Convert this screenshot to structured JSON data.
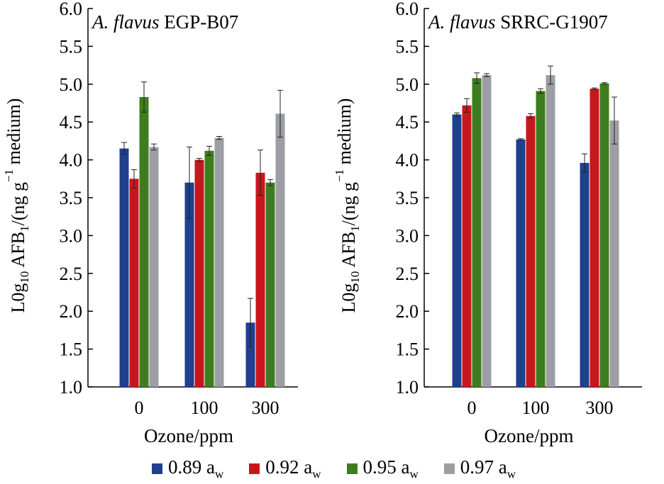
{
  "chart_data": [
    {
      "type": "bar",
      "title_italic": "A. flavus",
      "title_rest": "EGP-B07",
      "xlabel": "Ozone/ppm",
      "ylabel_parts": [
        "L0g",
        "10",
        " AFB",
        "1",
        "/(ng g",
        "−1",
        " medium)"
      ],
      "ylim": [
        1.0,
        6.0
      ],
      "yticks": [
        "1.0",
        "1.5",
        "2.0",
        "2.5",
        "3.0",
        "3.5",
        "4.0",
        "4.5",
        "5.0",
        "5.5",
        "6.0"
      ],
      "categories": [
        "0",
        "100",
        "300"
      ],
      "series": [
        {
          "name": "0.89 aw",
          "color": "#1f3f8f",
          "values": [
            4.15,
            3.7,
            1.85
          ],
          "errors": [
            0.08,
            0.47,
            0.32
          ]
        },
        {
          "name": "0.92 aw",
          "color": "#c8161d",
          "values": [
            3.75,
            4.0,
            3.83
          ],
          "errors": [
            0.12,
            0.02,
            0.3
          ]
        },
        {
          "name": "0.95 aw",
          "color": "#3e7d1f",
          "values": [
            4.83,
            4.12,
            3.7
          ],
          "errors": [
            0.2,
            0.06,
            0.04
          ]
        },
        {
          "name": "0.97 aw",
          "color": "#9c9ea3",
          "values": [
            4.17,
            4.29,
            4.61
          ],
          "errors": [
            0.04,
            0.02,
            0.31
          ]
        }
      ]
    },
    {
      "type": "bar",
      "title_italic": "A. flavus",
      "title_rest": "SRRC-G1907",
      "xlabel": "Ozone/ppm",
      "ylabel_parts": [
        "L0g",
        "10",
        " AFB",
        "1",
        "/(ng g",
        "−1",
        " medium)"
      ],
      "ylim": [
        1.0,
        6.0
      ],
      "yticks": [
        "1.0",
        "1.5",
        "2.0",
        "2.5",
        "3.0",
        "3.5",
        "4.0",
        "4.5",
        "5.0",
        "5.5",
        "6.0"
      ],
      "categories": [
        "0",
        "100",
        "300"
      ],
      "series": [
        {
          "name": "0.89 aw",
          "color": "#1f3f8f",
          "values": [
            4.6,
            4.27,
            3.96
          ],
          "errors": [
            0.02,
            0.01,
            0.12
          ]
        },
        {
          "name": "0.92 aw",
          "color": "#c8161d",
          "values": [
            4.72,
            4.58,
            4.94
          ],
          "errors": [
            0.09,
            0.03,
            0.01
          ]
        },
        {
          "name": "0.95 aw",
          "color": "#3e7d1f",
          "values": [
            5.08,
            4.91,
            5.01
          ],
          "errors": [
            0.07,
            0.03,
            0.01
          ]
        },
        {
          "name": "0.97 aw",
          "color": "#9c9ea3",
          "values": [
            5.12,
            5.12,
            4.52
          ],
          "errors": [
            0.02,
            0.12,
            0.31
          ]
        }
      ]
    }
  ],
  "legend": {
    "items": [
      {
        "value": "0.89 a",
        "sub": "w",
        "color": "#1f3f8f"
      },
      {
        "value": "0.92 a",
        "sub": "w",
        "color": "#c8161d"
      },
      {
        "value": "0.95 a",
        "sub": "w",
        "color": "#3e7d1f"
      },
      {
        "value": "0.97 a",
        "sub": "w",
        "color": "#9c9ea3"
      }
    ]
  }
}
